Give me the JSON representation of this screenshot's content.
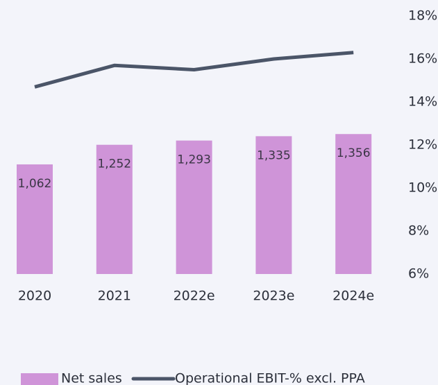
{
  "chart_data": {
    "type": "bar",
    "categories": [
      "2020",
      "2021",
      "2022e",
      "2023e",
      "2024e"
    ],
    "series": [
      {
        "name": "Net sales",
        "color": "#cf94d8",
        "values": [
          1062,
          1252,
          1293,
          1335,
          1356
        ],
        "value_labels": [
          "1,062",
          "1,252",
          "1,293",
          "1,335",
          "1,356"
        ]
      },
      {
        "name": "Operational EBIT-% excl. PPA",
        "color": "#4b5568",
        "type": "line",
        "axis": "y2",
        "values": [
          14.7,
          15.7,
          15.5,
          16.0,
          16.3
        ]
      }
    ],
    "ylim": [
      0,
      2500
    ],
    "y2lim": [
      6,
      18
    ],
    "y2ticks": [
      {
        "value": 6,
        "label": "6%"
      },
      {
        "value": 8,
        "label": "8%"
      },
      {
        "value": 10,
        "label": "10%"
      },
      {
        "value": 12,
        "label": "12%"
      },
      {
        "value": 14,
        "label": "14%"
      },
      {
        "value": 16,
        "label": "16%"
      },
      {
        "value": 18,
        "label": "18%"
      }
    ],
    "legend": "bottom"
  }
}
